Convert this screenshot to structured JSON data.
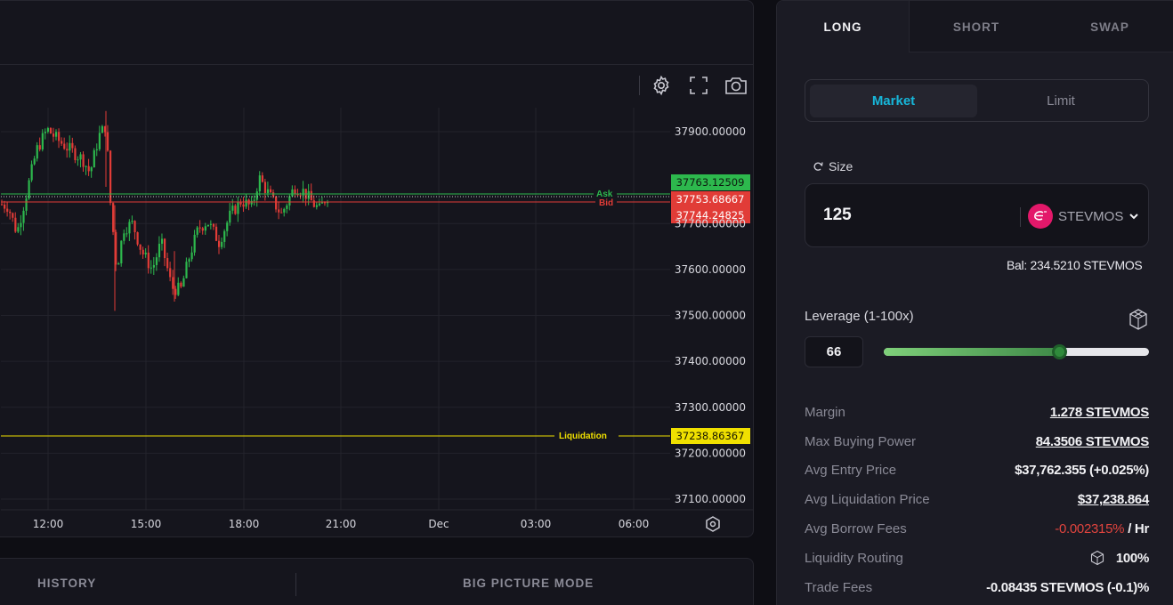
{
  "chart": {
    "price_axis": [
      "37900.00000",
      "37700.00000",
      "37600.00000",
      "37500.00000",
      "37400.00000",
      "37300.00000",
      "37200.00000",
      "37100.00000"
    ],
    "time_axis": [
      "12:00",
      "15:00",
      "18:00",
      "21:00",
      "Dec",
      "03:00",
      "06:00"
    ],
    "ask_label": "Ask",
    "bid_label": "Bid",
    "liquidation_label": "Liquidation",
    "ask_price": "37763.12509",
    "mid_price": "37753.68667",
    "bid_price": "37744.24825",
    "liquidation_price": "37238.86367",
    "colors": {
      "up": "#2db84d",
      "down": "#e13c37",
      "ask": "#2db84d",
      "bid": "#e13c37",
      "liquidation": "#f0e000"
    },
    "icons": [
      "gear-icon",
      "fullscreen-icon",
      "camera-icon",
      "settings-hex-icon"
    ]
  },
  "bottom": {
    "history": "HISTORY",
    "big_picture": "BIG PICTURE MODE"
  },
  "trade": {
    "tabs": [
      "LONG",
      "SHORT",
      "SWAP"
    ],
    "order_types": [
      "Market",
      "Limit"
    ],
    "size_label": "Size",
    "size_value": "125",
    "token": "STEVMOS",
    "balance": "Bal: 234.5210 STEVMOS",
    "leverage_label": "Leverage (1-100x)",
    "leverage_value": "66",
    "leverage_fraction": 0.66,
    "details": {
      "margin_label": "Margin",
      "margin_value": "1.278 STEVMOS",
      "max_buying_label": "Max Buying Power",
      "max_buying_value": "84.3506 STEVMOS",
      "avg_entry_label": "Avg Entry Price",
      "avg_entry_value": "$37,762.355 (+0.025%)",
      "avg_liq_label": "Avg Liquidation Price",
      "avg_liq_value": "$37,238.864",
      "avg_borrow_label": "Avg Borrow Fees",
      "avg_borrow_value": "-0.002315%",
      "avg_borrow_unit": "/ Hr",
      "routing_label": "Liquidity Routing",
      "routing_value": "100%",
      "trade_fees_label": "Trade Fees",
      "trade_fees_value": "-0.08435 STEVMOS (-0.1)%"
    },
    "accent": "#17b6d9",
    "token_color": "#e3186a"
  }
}
